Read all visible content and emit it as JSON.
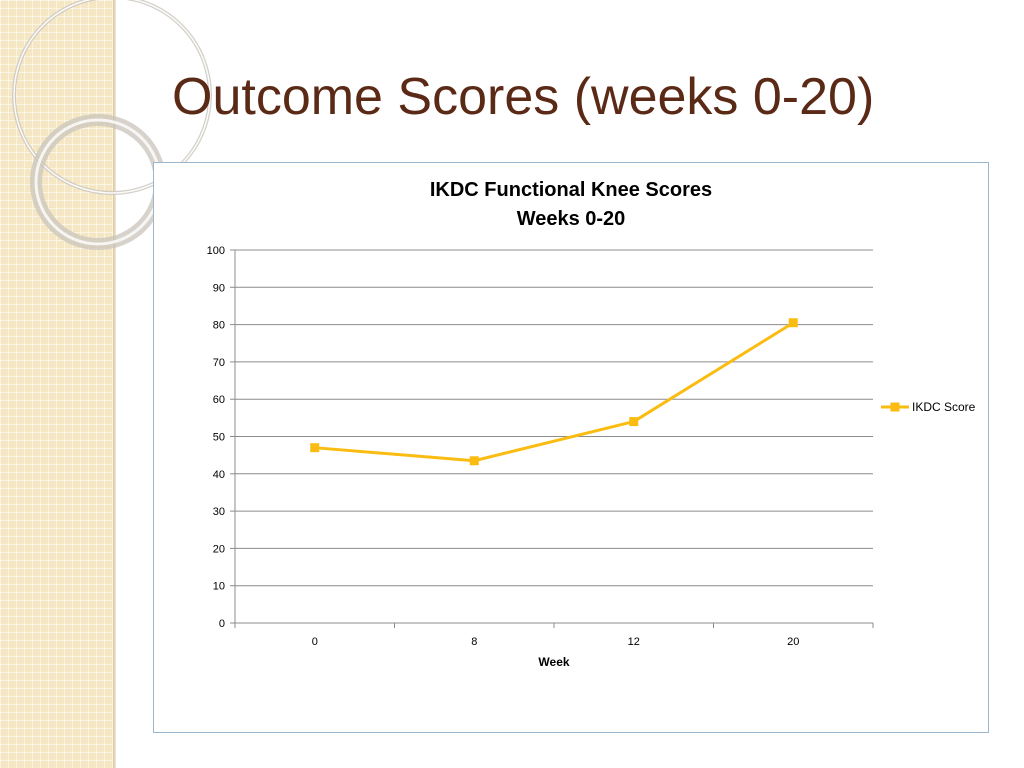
{
  "slide": {
    "title": "Outcome Scores (weeks 0-20)",
    "title_color": "#5b2a17",
    "side_color": "#f5e6c4"
  },
  "chart_data": {
    "type": "line",
    "title_lines": [
      "IKDC Functional Knee Scores",
      "Weeks 0-20"
    ],
    "categories": [
      "0",
      "8",
      "12",
      "20"
    ],
    "series": [
      {
        "name": "IKDC Score",
        "values": [
          47,
          43.5,
          54,
          80.5
        ],
        "color": "#fbbc12",
        "marker": "square"
      }
    ],
    "xlabel": "Week",
    "ylabel": "",
    "ylim": [
      0,
      100
    ],
    "yticks": [
      "0",
      "10",
      "20",
      "30",
      "40",
      "50",
      "60",
      "70",
      "80",
      "90",
      "100"
    ],
    "grid": true,
    "legend": "right"
  }
}
